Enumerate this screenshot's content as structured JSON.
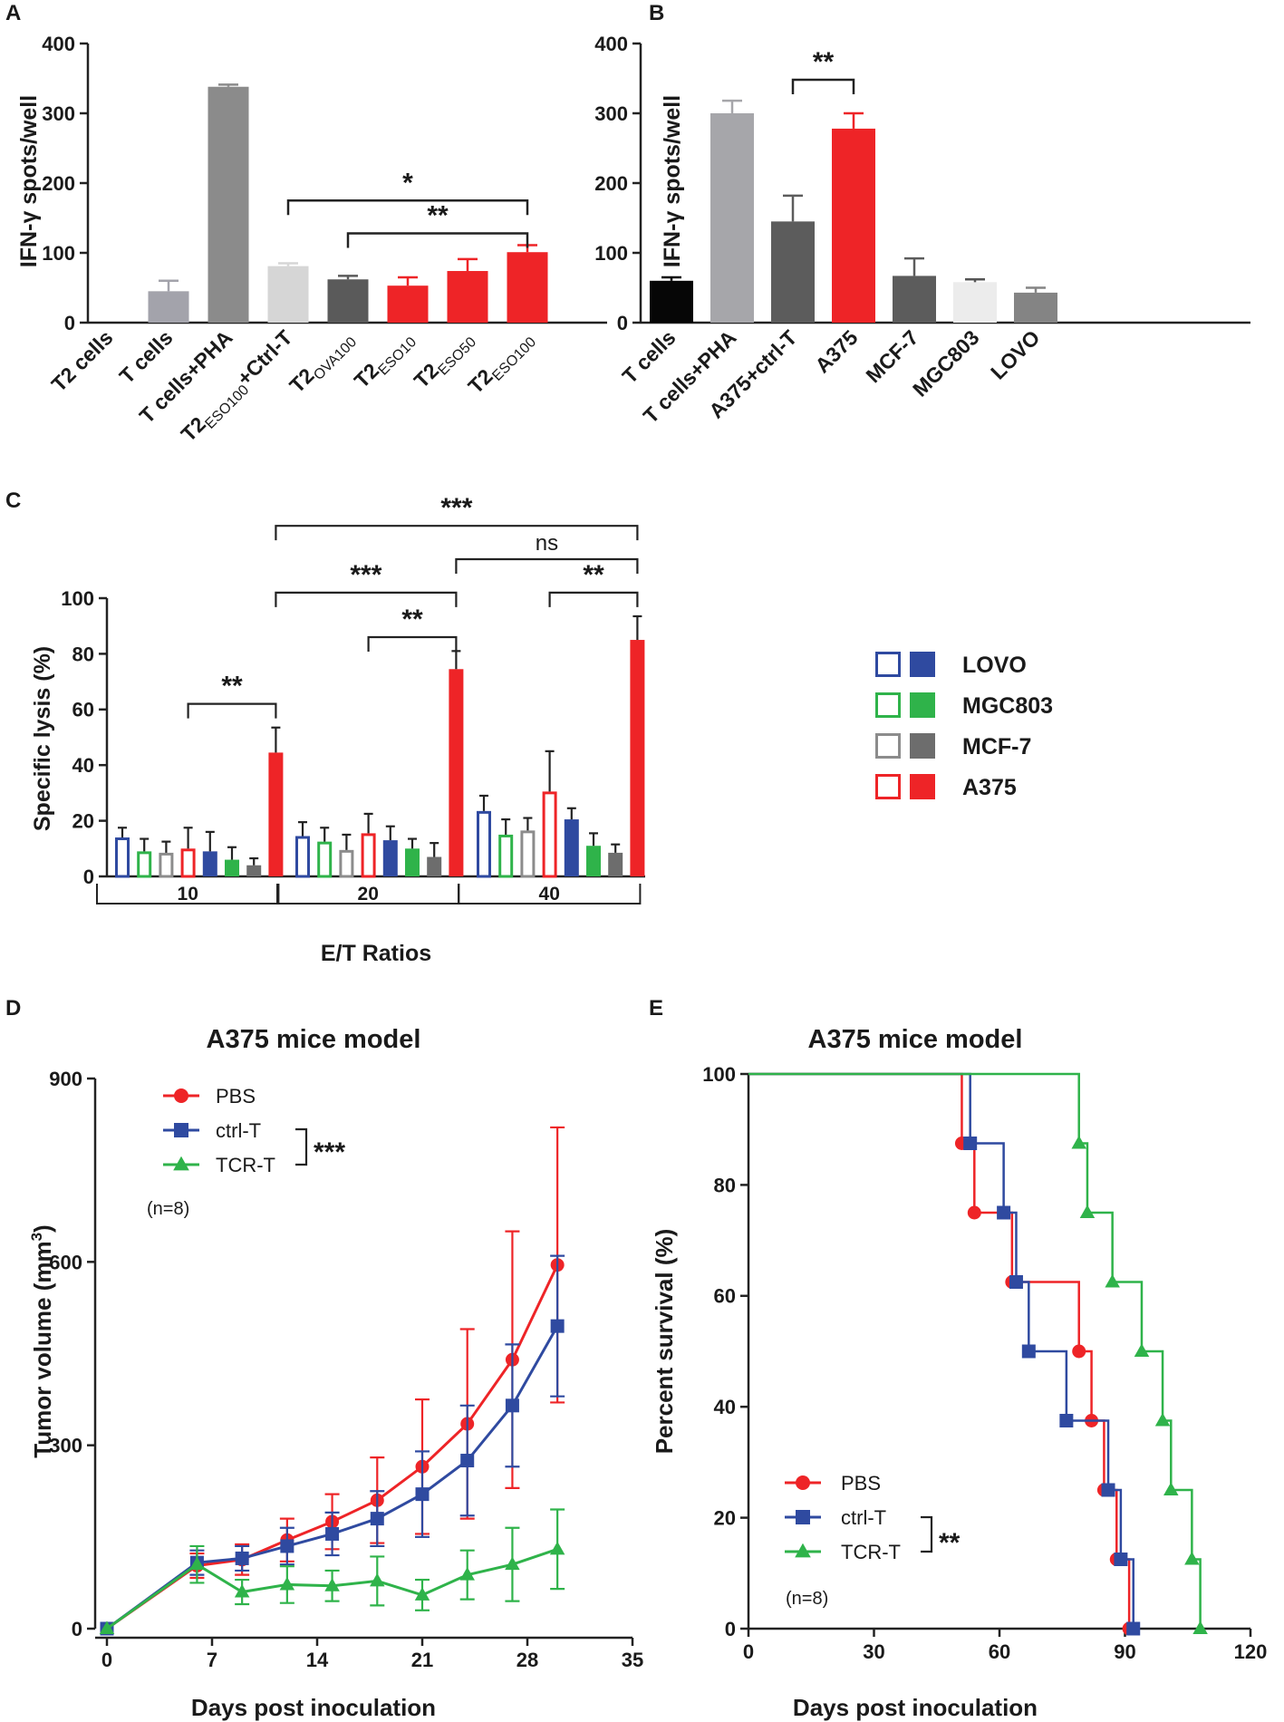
{
  "chart_data": [
    {
      "id": "A",
      "type": "bar",
      "panel_label": "A",
      "ylabel": "IFN-γ spots/well",
      "ylim": [
        0,
        400
      ],
      "yticks": [
        0,
        100,
        200,
        300,
        400
      ],
      "categories": [
        {
          "main": "T2 cells",
          "sub": "",
          "tail": ""
        },
        {
          "main": "T cells",
          "sub": "",
          "tail": ""
        },
        {
          "main": "T cells+PHA",
          "sub": "",
          "tail": ""
        },
        {
          "main": "T2",
          "sub": "ESO100",
          "tail": "+Ctrl-T"
        },
        {
          "main": "T2",
          "sub": "OVA100",
          "tail": ""
        },
        {
          "main": "T2",
          "sub": "ESO10",
          "tail": ""
        },
        {
          "main": "T2",
          "sub": "ESO50",
          "tail": ""
        },
        {
          "main": "T2",
          "sub": "ESO100",
          "tail": ""
        }
      ],
      "values": [
        0,
        45,
        338,
        81,
        62,
        53,
        74,
        101
      ],
      "errors": [
        0,
        15,
        3,
        4,
        5,
        12,
        17,
        10
      ],
      "colors": [
        "#000000",
        "#a3a3ab",
        "#8b8b8b",
        "#d6d6d6",
        "#5a5a5a",
        "#ee2427",
        "#ee2427",
        "#ee2427"
      ],
      "annotations": [
        {
          "from": 3,
          "to": 7,
          "y": 175,
          "label": "*"
        },
        {
          "from": 4,
          "to": 7,
          "y": 128,
          "label": "**"
        }
      ]
    },
    {
      "id": "B",
      "type": "bar",
      "panel_label": "B",
      "ylabel": "IFN-γ spots/well",
      "ylim": [
        0,
        400
      ],
      "yticks": [
        0,
        100,
        200,
        300,
        400
      ],
      "categories": [
        {
          "main": "T cells",
          "sub": "",
          "tail": ""
        },
        {
          "main": "T cells+PHA",
          "sub": "",
          "tail": ""
        },
        {
          "main": "A375+ctrl-T",
          "sub": "",
          "tail": ""
        },
        {
          "main": "A375",
          "sub": "",
          "tail": ""
        },
        {
          "main": "MCF-7",
          "sub": "",
          "tail": ""
        },
        {
          "main": "MGC803",
          "sub": "",
          "tail": ""
        },
        {
          "main": "LOVO",
          "sub": "",
          "tail": ""
        }
      ],
      "values": [
        60,
        300,
        145,
        278,
        67,
        58,
        43
      ],
      "errors": [
        5,
        18,
        37,
        22,
        25,
        4,
        7
      ],
      "colors": [
        "#060606",
        "#a6a6aa",
        "#5c5c5c",
        "#ee2427",
        "#5c5c5c",
        "#ececec",
        "#848484"
      ],
      "annotations": [
        {
          "from": 2,
          "to": 3,
          "y": 348,
          "label": "**"
        }
      ]
    },
    {
      "id": "C",
      "type": "bar",
      "panel_label": "C",
      "ylabel": "Specific lysis (%)",
      "xlabel": "E/T Ratios",
      "ylim": [
        0,
        100
      ],
      "yticks": [
        0,
        20,
        40,
        60,
        80,
        100
      ],
      "groups": [
        "10",
        "20",
        "40"
      ],
      "bar_order": [
        {
          "cell": "LOVO",
          "style": "open"
        },
        {
          "cell": "MGC803",
          "style": "open"
        },
        {
          "cell": "MCF-7",
          "style": "open"
        },
        {
          "cell": "A375",
          "style": "open"
        },
        {
          "cell": "LOVO",
          "style": "filled"
        },
        {
          "cell": "MGC803",
          "style": "filled"
        },
        {
          "cell": "MCF-7",
          "style": "filled"
        },
        {
          "cell": "A375",
          "style": "filled"
        }
      ],
      "values": [
        [
          14,
          9,
          8.5,
          10,
          9,
          6,
          4,
          44.5
        ],
        [
          14.5,
          12.5,
          9.5,
          15.5,
          13,
          10,
          7,
          74.5
        ],
        [
          23.5,
          15,
          16.5,
          30.5,
          20.5,
          11,
          8.5,
          85
        ]
      ],
      "errors": [
        [
          3.5,
          4.5,
          4,
          7.5,
          7,
          4.5,
          2.5,
          9
        ],
        [
          5,
          5,
          5.5,
          7,
          5,
          3.5,
          5,
          6.5
        ],
        [
          5.5,
          5.5,
          4.5,
          14.5,
          4,
          4.5,
          3,
          8.5
        ]
      ],
      "legend": [
        {
          "label": "LOVO",
          "color": "#2f4aa0"
        },
        {
          "label": "MGC803",
          "color": "#2fb34a"
        },
        {
          "label": "MCF-7",
          "color": "#6d6d6d"
        },
        {
          "label": "A375",
          "color": "#ee2427"
        }
      ],
      "open_colors": {
        "LOVO": "#2f4aa0",
        "MGC803": "#2fb34a",
        "MCF-7": "#8c8c8c",
        "A375": "#ee2427"
      },
      "filled_colors": {
        "LOVO": "#2f4aa0",
        "MGC803": "#2fb34a",
        "MCF-7": "#6d6d6d",
        "A375": "#ee2427"
      },
      "annotations": [
        {
          "from": [
            0,
            3
          ],
          "to": [
            0,
            7
          ],
          "y": 62,
          "label": "**"
        },
        {
          "from": [
            1,
            3
          ],
          "to": [
            1,
            7
          ],
          "y": 86,
          "label": "**"
        },
        {
          "from": [
            0,
            7
          ],
          "to": [
            1,
            7
          ],
          "y": 102,
          "label": "***"
        },
        {
          "from": [
            2,
            3
          ],
          "to": [
            2,
            7
          ],
          "y": 102,
          "label": "**"
        },
        {
          "from": [
            1,
            7
          ],
          "to": [
            2,
            7
          ],
          "y": 114,
          "label": "ns"
        },
        {
          "from": [
            0,
            7
          ],
          "to": [
            2,
            7
          ],
          "y": 126,
          "label": "***"
        }
      ]
    },
    {
      "id": "D",
      "type": "line",
      "panel_label": "D",
      "title": "A375 mice model",
      "xlabel": "Days post inoculation",
      "ylabel": "Tumor volume (mm",
      "ylabel_sup": "3",
      "ylabel_tail": ")",
      "xlim": [
        0,
        35
      ],
      "ylim": [
        0,
        900
      ],
      "xticks": [
        0,
        7,
        14,
        21,
        28,
        35
      ],
      "yticks": [
        0,
        300,
        600,
        900
      ],
      "n_label": "(n=8)",
      "significance": "***",
      "series": [
        {
          "name": "PBS",
          "color": "#ee2427",
          "marker": "circle",
          "x": [
            0,
            6,
            9,
            12,
            15,
            18,
            21,
            24,
            27,
            30
          ],
          "y": [
            0,
            103,
            113,
            145,
            175,
            210,
            265,
            335,
            440,
            595
          ],
          "err": [
            0,
            20,
            25,
            35,
            45,
            70,
            110,
            155,
            210,
            225
          ]
        },
        {
          "name": "ctrl-T",
          "color": "#2f4aa0",
          "marker": "square",
          "x": [
            0,
            6,
            9,
            12,
            15,
            18,
            21,
            24,
            27,
            30
          ],
          "y": [
            0,
            108,
            115,
            135,
            155,
            180,
            220,
            275,
            365,
            495
          ],
          "err": [
            0,
            20,
            20,
            30,
            35,
            45,
            70,
            90,
            100,
            115
          ]
        },
        {
          "name": "TCR-T",
          "color": "#2fb34a",
          "marker": "triangle",
          "x": [
            0,
            6,
            9,
            12,
            15,
            18,
            21,
            24,
            27,
            30
          ],
          "y": [
            0,
            105,
            60,
            72,
            70,
            78,
            55,
            88,
            105,
            130
          ],
          "err": [
            0,
            30,
            20,
            30,
            25,
            40,
            25,
            40,
            60,
            65
          ]
        }
      ]
    },
    {
      "id": "E",
      "type": "line",
      "panel_label": "E",
      "title": "A375 mice model",
      "xlabel": "Days post inoculation",
      "ylabel": "Percent survival (%)",
      "xlim": [
        0,
        120
      ],
      "ylim": [
        0,
        100
      ],
      "xticks": [
        0,
        30,
        60,
        90,
        120
      ],
      "yticks": [
        0,
        20,
        40,
        60,
        80,
        100
      ],
      "n_label": "(n=8)",
      "significance": "**",
      "series": [
        {
          "name": "PBS",
          "color": "#ee2427",
          "marker": "circle",
          "steps": [
            [
              0,
              100
            ],
            [
              51,
              87.5
            ],
            [
              54,
              75
            ],
            [
              63,
              62.5
            ],
            [
              79,
              50
            ],
            [
              82,
              37.5
            ],
            [
              85,
              25
            ],
            [
              88,
              12.5
            ],
            [
              91,
              0
            ]
          ]
        },
        {
          "name": "ctrl-T",
          "color": "#2f4aa0",
          "marker": "square",
          "steps": [
            [
              0,
              100
            ],
            [
              53,
              87.5
            ],
            [
              61,
              75
            ],
            [
              64,
              62.5
            ],
            [
              67,
              50
            ],
            [
              76,
              37.5
            ],
            [
              86,
              25
            ],
            [
              89,
              12.5
            ],
            [
              92,
              0
            ]
          ]
        },
        {
          "name": "TCR-T",
          "color": "#2fb34a",
          "marker": "triangle",
          "steps": [
            [
              0,
              100
            ],
            [
              79,
              87.5
            ],
            [
              81,
              75
            ],
            [
              87,
              62.5
            ],
            [
              94,
              50
            ],
            [
              99,
              37.5
            ],
            [
              101,
              25
            ],
            [
              106,
              12.5
            ],
            [
              108,
              0
            ]
          ]
        }
      ]
    }
  ]
}
